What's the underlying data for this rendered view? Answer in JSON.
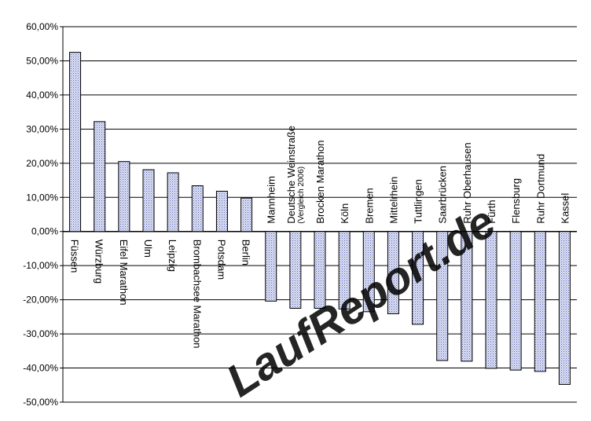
{
  "chart_data": {
    "type": "bar",
    "categories": [
      "Füssen",
      "Würzburg",
      "Eifel Marathon",
      "Ulm",
      "Leipzig",
      "Brombachsee Marathon",
      "Potsdam",
      "Berlin",
      "Mannheim",
      "Deutsche Weinstraße",
      "Brocken Marathon",
      "Köln",
      "Bremen",
      "Mittelrhein",
      "Tuttlingen",
      "Saarbrücken",
      "Ruhr Oberhausen",
      "Fürth",
      "Flensburg",
      "Ruhr Dortmund",
      "Kassel"
    ],
    "category_notes": [
      "",
      "",
      "",
      "",
      "",
      "",
      "",
      "",
      "",
      "(Vergleich 2006)",
      "",
      "",
      "",
      "",
      "",
      "",
      "",
      "",
      "",
      "",
      ""
    ],
    "values": [
      52.5,
      32.2,
      20.5,
      18.1,
      17.2,
      13.4,
      11.8,
      9.8,
      -20.4,
      -22.5,
      -22.5,
      -22.7,
      -23.5,
      -24.1,
      -27.2,
      -37.8,
      -38.0,
      -40.1,
      -40.6,
      -41.0,
      -44.8
    ],
    "ylim": [
      -50,
      60
    ],
    "yticks": [
      60,
      50,
      40,
      30,
      20,
      10,
      0,
      -10,
      -20,
      -30,
      -40,
      -50
    ],
    "ytick_labels": [
      "60,00%",
      "50,00%",
      "40,00%",
      "30,00%",
      "20,00%",
      "10,00%",
      "0,00%",
      "-10,00%",
      "-20,00%",
      "-30,00%",
      "-40,00%",
      "-50,00%"
    ],
    "grid": true,
    "title": "",
    "xlabel": "",
    "ylabel": "",
    "colors": {
      "bar_fill": "#dfe3f7",
      "bar_dot": "#5a63a8",
      "bar_edge": "#000000",
      "grid": "#000000"
    }
  },
  "watermark": {
    "text": "LaufReport.de",
    "color": "#c9cff0"
  }
}
